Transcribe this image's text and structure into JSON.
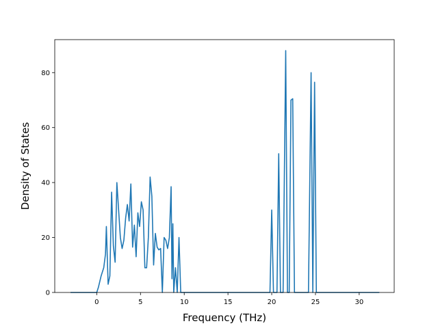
{
  "chart_data": {
    "type": "line",
    "title": "",
    "xlabel": "Frequency (THz)",
    "ylabel": "Density of States",
    "xlim": [
      -4.8,
      34.0
    ],
    "ylim": [
      0,
      92
    ],
    "xticks": [
      0,
      5,
      10,
      15,
      20,
      25,
      30
    ],
    "yticks": [
      0,
      20,
      40,
      60,
      80
    ],
    "grid": false,
    "legend": "none",
    "series": [
      {
        "color": "#1f77b4",
        "x": [
          -3.0,
          -1.0,
          0.0,
          0.2,
          0.5,
          0.8,
          1.0,
          1.1,
          1.3,
          1.5,
          1.7,
          1.9,
          2.1,
          2.3,
          2.5,
          2.7,
          2.9,
          3.1,
          3.3,
          3.5,
          3.7,
          3.9,
          4.1,
          4.3,
          4.5,
          4.7,
          4.9,
          5.1,
          5.3,
          5.5,
          5.7,
          5.9,
          6.1,
          6.3,
          6.5,
          6.7,
          6.8,
          6.9,
          7.1,
          7.3,
          7.5,
          7.7,
          7.9,
          8.1,
          8.3,
          8.5,
          8.6,
          8.7,
          8.8,
          9.0,
          9.2,
          9.4,
          9.6,
          9.8,
          12.0,
          16.0,
          19.4,
          19.8,
          20.0,
          20.2,
          20.6,
          20.8,
          21.0,
          21.3,
          21.6,
          21.8,
          22.0,
          22.2,
          22.4,
          22.6,
          22.8,
          23.5,
          24.0,
          24.2,
          24.5,
          24.7,
          24.9,
          25.1,
          25.5,
          28.0,
          32.3
        ],
        "y": [
          0,
          0,
          0,
          2,
          6,
          9,
          14,
          24,
          3,
          6,
          36.5,
          17,
          11,
          40,
          30,
          20,
          16,
          19,
          27,
          32,
          26,
          39.5,
          16.5,
          24.5,
          13,
          29,
          24,
          33,
          30,
          9,
          9,
          20,
          42,
          35,
          10,
          21.5,
          19,
          16.5,
          15.5,
          16,
          0,
          20,
          19,
          16,
          20,
          38.5,
          5,
          25,
          0,
          9,
          0,
          20,
          0,
          0,
          0,
          0,
          0,
          0,
          30,
          0,
          0,
          50.5,
          0,
          0,
          88,
          0,
          0,
          70,
          70.5,
          0,
          0,
          0,
          0,
          0,
          80,
          0,
          76.5,
          0,
          0,
          0,
          0
        ]
      }
    ]
  }
}
